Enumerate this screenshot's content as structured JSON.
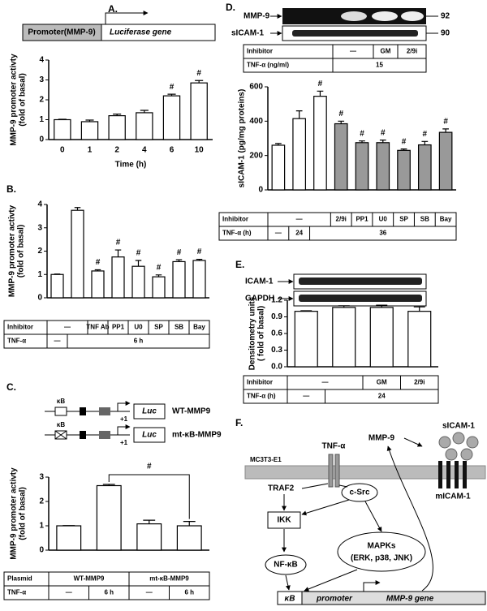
{
  "chart_data": [
    {
      "type": "bar",
      "panel_label": "A.",
      "promoter_label": "Promoter(MMP-9)",
      "reporter": "Luciferase gene",
      "ylabel": [
        "MMP-9 promoter activty",
        "(fold of basal)"
      ],
      "xlabel": "Time (h)",
      "categories": [
        "0",
        "1",
        "2",
        "4",
        "6",
        "10"
      ],
      "values": [
        1.0,
        0.9,
        1.2,
        1.35,
        2.2,
        2.85
      ],
      "errors": [
        0.02,
        0.08,
        0.08,
        0.12,
        0.08,
        0.12
      ],
      "annotations": [
        null,
        null,
        null,
        null,
        "#",
        "#"
      ],
      "ylim": [
        0,
        4
      ],
      "yticks": [
        0,
        1,
        2,
        3,
        4
      ]
    },
    {
      "type": "bar",
      "panel_label": "B.",
      "ylabel": [
        "MMP-9 promoter activty",
        "(fold of basal)"
      ],
      "values": [
        1.0,
        3.75,
        1.15,
        1.75,
        1.35,
        0.9,
        1.55,
        1.6
      ],
      "errors": [
        0.02,
        0.12,
        0.05,
        0.3,
        0.25,
        0.08,
        0.08,
        0.05
      ],
      "annotations": [
        null,
        null,
        "#",
        "#",
        "#",
        "#",
        "#",
        "#"
      ],
      "ylim": [
        0,
        4
      ],
      "yticks": [
        0,
        1,
        2,
        3,
        4
      ],
      "table": [
        {
          "label": "Inhibitor",
          "cells": [
            "—",
            "TNF Ab",
            "PP1",
            "U0",
            "SP",
            "SB",
            "Bay"
          ]
        },
        {
          "label": "TNF-α",
          "cells": [
            "—",
            "6 h"
          ]
        }
      ]
    },
    {
      "type": "bar",
      "panel_label": "C.",
      "constructs": [
        {
          "site": "κB",
          "name": "WT-MMP9"
        },
        {
          "site": "κB",
          "name": "mt-κB-MMP9"
        }
      ],
      "tss": "+1",
      "reporter": "Luc",
      "ylabel": [
        "MMP-9 promoter activty",
        "(fold of basal)"
      ],
      "values": [
        1.0,
        2.65,
        1.08,
        1.0
      ],
      "errors": [
        0.01,
        0.05,
        0.15,
        0.18
      ],
      "annotation": "#",
      "ylim": [
        0,
        3
      ],
      "yticks": [
        0,
        1,
        2,
        3
      ],
      "table": [
        {
          "label": "Plasmid",
          "cells": [
            "WT-MMP9",
            "mt-κB-MMP9"
          ]
        },
        {
          "label": "TNF-α",
          "cells": [
            "—",
            "6 h",
            "—",
            "6 h"
          ]
        }
      ]
    },
    {
      "type": "bar",
      "panel_label": "D.",
      "blot": [
        "MMP-9",
        "sICAM-1"
      ],
      "blot_sizes": [
        92,
        90
      ],
      "blot_table": [
        {
          "label": "Inhibitor",
          "cells": [
            "—",
            "GM",
            "2/9i"
          ]
        },
        {
          "label": "TNF-α (ng/ml)",
          "cells": [
            15
          ]
        }
      ],
      "ylabel": [
        "sICAM-1 (pg/mg proteins)"
      ],
      "values": [
        260,
        415,
        545,
        385,
        275,
        275,
        230,
        262,
        335
      ],
      "errors": [
        10,
        45,
        30,
        15,
        10,
        15,
        8,
        20,
        20
      ],
      "colors": [
        "#ffffff",
        "#ffffff",
        "#ffffff",
        "#999999",
        "#999999",
        "#999999",
        "#999999",
        "#999999",
        "#999999"
      ],
      "annotations": [
        null,
        null,
        "#",
        "#",
        "#",
        "#",
        "#",
        "#",
        "#"
      ],
      "ylim": [
        0,
        600
      ],
      "yticks": [
        0,
        200,
        400,
        600
      ],
      "table": [
        {
          "label": "Inhibitor",
          "cells": [
            "—",
            "2/9i",
            "PP1",
            "U0",
            "SP",
            "SB",
            "Bay"
          ]
        },
        {
          "label": "TNF-α (h)",
          "cells": [
            "—",
            24,
            36
          ]
        }
      ]
    },
    {
      "type": "bar",
      "panel_label": "E.",
      "blot": [
        "ICAM-1",
        "GAPDH"
      ],
      "ylabel": [
        "Densitometry units",
        "( fold of basal)"
      ],
      "values": [
        1.0,
        1.07,
        1.07,
        1.0
      ],
      "errors": [
        0.01,
        0.03,
        0.04,
        0.08
      ],
      "ylim": [
        0,
        1.2
      ],
      "yticks": [
        {
          "value": 0,
          "label": "0.0"
        },
        0.3,
        0.6,
        0.9,
        1.2
      ],
      "table": [
        {
          "label": "Inhibitor",
          "cells": [
            "—",
            "GM",
            "2/9i"
          ]
        },
        {
          "label": "TNF-α (h)",
          "cells": [
            "—",
            24
          ]
        }
      ]
    }
  ],
  "diagram": {
    "panel_label": "F.",
    "cell": "MC3T3-E1",
    "ligand": "TNF-α",
    "secreted": "MMP-9",
    "soluble": "sICAM-1",
    "adaptor": "TRAF2",
    "kinase": "c-Src",
    "ikk": "IKK",
    "mapks": "MAPKs",
    "mapks_detail": "(ERK, p38, JNK)",
    "nfkb": "NF-κB",
    "membrane_protein": "mICAM-1",
    "site": "κB",
    "promoter": "promoter",
    "gene": "MMP-9 gene"
  }
}
